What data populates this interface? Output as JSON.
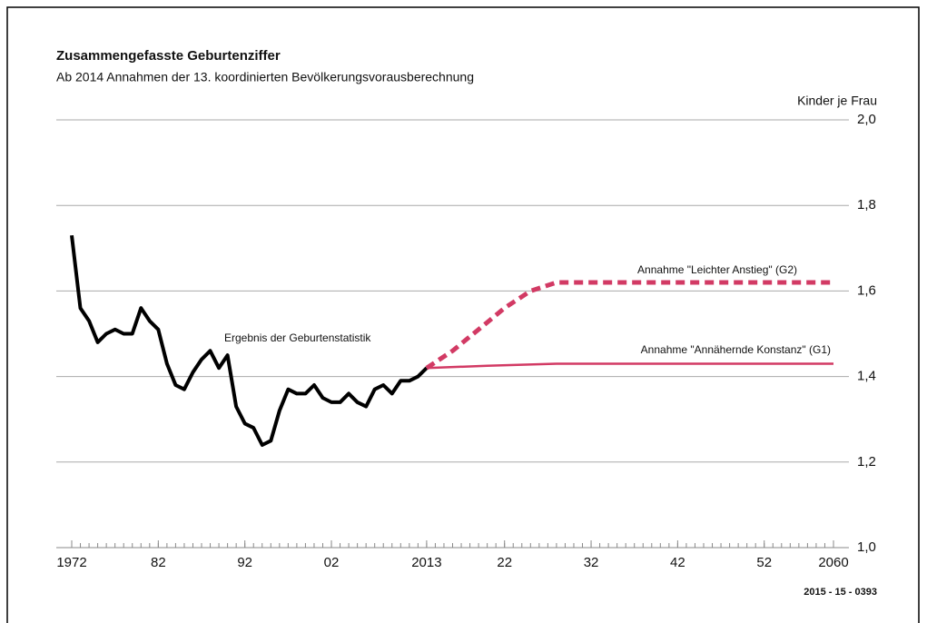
{
  "chart_data": {
    "type": "line",
    "title": "Zusammengefasste Geburtenziffer",
    "subtitle": "Ab 2014 Annahmen der 13. koordinierten Bevölkerungsvorausberechnung",
    "y_label": "Kinder je Frau",
    "source": "2015 - 15 - 0393",
    "xlim": [
      1972,
      2060
    ],
    "ylim": [
      1.0,
      2.0
    ],
    "xticks": [
      1972,
      {
        "value": 1982,
        "label": "82"
      },
      {
        "value": 1992,
        "label": "92"
      },
      {
        "value": 2002,
        "label": "02"
      },
      2013,
      {
        "value": 2022,
        "label": "22"
      },
      {
        "value": 2032,
        "label": "32"
      },
      {
        "value": 2042,
        "label": "42"
      },
      {
        "value": 2052,
        "label": "52"
      },
      2060
    ],
    "yticks": [
      {
        "value": 1.0,
        "label": "1,0"
      },
      {
        "value": 1.2,
        "label": "1,2"
      },
      {
        "value": 1.4,
        "label": "1,4"
      },
      {
        "value": 1.6,
        "label": "1,6"
      },
      {
        "value": 1.8,
        "label": "1,8"
      },
      {
        "value": 2.0,
        "label": "2,0"
      }
    ],
    "grid": true,
    "minor_ticks": true,
    "series": [
      {
        "name": "Ergebnis der Geburtenstatistik",
        "color": "#000000",
        "dashed": false,
        "x": [
          1972,
          1973,
          1974,
          1975,
          1976,
          1977,
          1978,
          1979,
          1980,
          1981,
          1982,
          1983,
          1984,
          1985,
          1986,
          1987,
          1988,
          1989,
          1990,
          1991,
          1992,
          1993,
          1994,
          1995,
          1996,
          1997,
          1998,
          1999,
          2000,
          2001,
          2002,
          2003,
          2004,
          2005,
          2006,
          2007,
          2008,
          2009,
          2010,
          2011,
          2012,
          2013
        ],
        "values": [
          1.73,
          1.56,
          1.53,
          1.48,
          1.5,
          1.51,
          1.5,
          1.5,
          1.56,
          1.53,
          1.51,
          1.43,
          1.38,
          1.37,
          1.41,
          1.44,
          1.46,
          1.42,
          1.45,
          1.33,
          1.29,
          1.28,
          1.24,
          1.25,
          1.32,
          1.37,
          1.36,
          1.36,
          1.38,
          1.35,
          1.34,
          1.34,
          1.36,
          1.34,
          1.33,
          1.37,
          1.38,
          1.36,
          1.39,
          1.39,
          1.4,
          1.42
        ]
      },
      {
        "name": "Annahme \"Leichter Anstieg\" (G2)",
        "color": "#d23a64",
        "dashed": true,
        "x": [
          2013,
          2016,
          2019,
          2022,
          2025,
          2028,
          2060
        ],
        "values": [
          1.42,
          1.46,
          1.51,
          1.56,
          1.6,
          1.62,
          1.62
        ]
      },
      {
        "name": "Annahme \"Annähernde Konstanz\" (G1)",
        "color": "#d23a64",
        "dashed": false,
        "x": [
          2013,
          2020,
          2028,
          2060
        ],
        "values": [
          1.42,
          1.425,
          1.43,
          1.43
        ]
      }
    ]
  }
}
